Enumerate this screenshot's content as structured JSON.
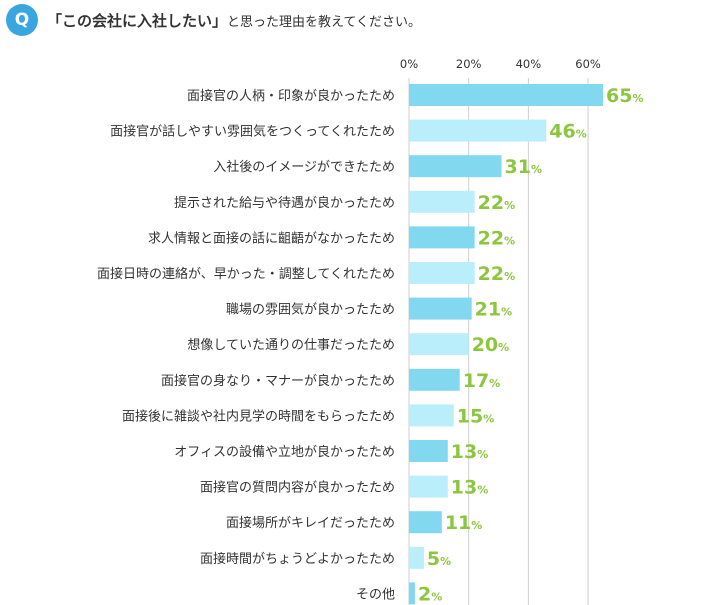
{
  "question": {
    "badge": "Q",
    "quoted": "「この会社に入社したい」",
    "rest": "と思った理由を教えてください。"
  },
  "colors": {
    "badge": "#3aa6e0",
    "bar_dark": "#82d8ee",
    "bar_light": "#b9eefa",
    "value_text": "#8cc63f",
    "grid": "#cfcfcf"
  },
  "chart_data": {
    "type": "bar",
    "orientation": "horizontal",
    "title": "",
    "xlabel": "",
    "ylabel": "",
    "xlim": [
      0,
      65
    ],
    "ticks": [
      {
        "value": 0,
        "label": "0%"
      },
      {
        "value": 20,
        "label": "20%"
      },
      {
        "value": 40,
        "label": "40%"
      },
      {
        "value": 60,
        "label": "60%"
      }
    ],
    "value_suffix": "%",
    "grid": true,
    "categories": [
      "面接官の人柄・印象が良かったため",
      "面接官が話しやすい雰囲気をつくってくれたため",
      "入社後のイメージができたため",
      "提示された給与や待遇が良かったため",
      "求人情報と面接の話に齟齬がなかったため",
      "面接日時の連絡が、早かった・調整してくれたため",
      "職場の雰囲気が良かったため",
      "想像していた通りの仕事だったため",
      "面接官の身なり・マナーが良かったため",
      "面接後に雑談や社内見学の時間をもらったため",
      "オフィスの設備や立地が良かったため",
      "面接官の質問内容が良かったため",
      "面接場所がキレイだったため",
      "面接時間がちょうどよかったため",
      "その他"
    ],
    "values": [
      65,
      46,
      31,
      22,
      22,
      22,
      21,
      20,
      17,
      15,
      13,
      13,
      11,
      5,
      2
    ]
  }
}
